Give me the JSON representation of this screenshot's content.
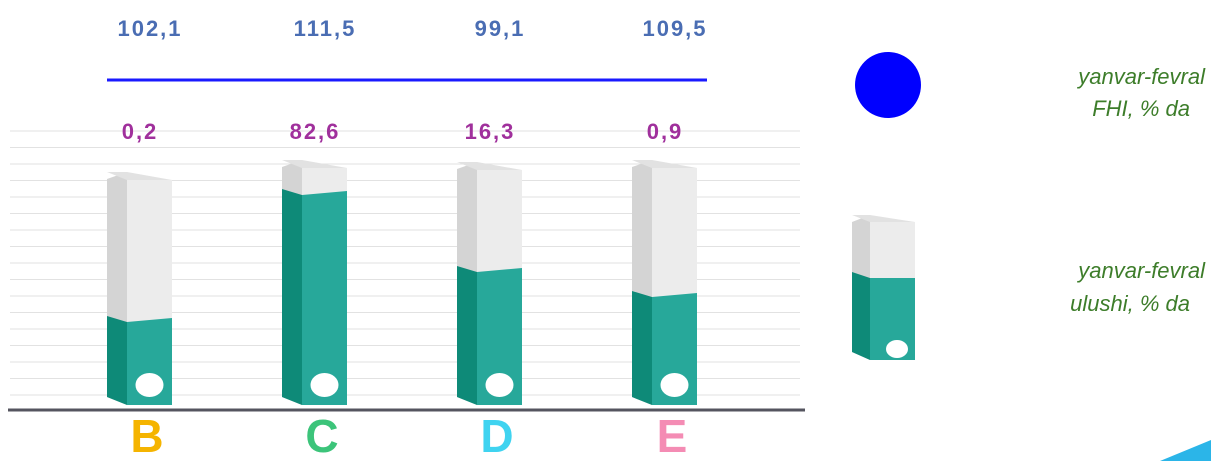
{
  "columns": [
    {
      "letter": "B",
      "fhi": "102,1",
      "share": "0,2",
      "color": "#f5b400"
    },
    {
      "letter": "C",
      "fhi": "111,5",
      "share": "82,6",
      "color": "#3cc47a"
    },
    {
      "letter": "D",
      "fhi": "99,1",
      "share": "16,3",
      "color": "#3fd3f0"
    },
    {
      "letter": "E",
      "fhi": "109,5",
      "share": "0,9",
      "color": "#f48cb4"
    }
  ],
  "legend": {
    "fhi": [
      "yanvar-fevral",
      "FHI, % da"
    ],
    "share": [
      "yanvar-fevral",
      "ulushi, % da"
    ]
  }
}
